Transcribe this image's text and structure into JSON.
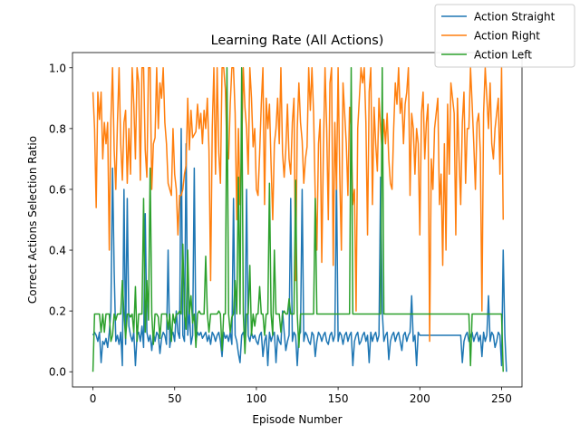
{
  "chart_data": {
    "type": "line",
    "title": "Learning Rate (All Actions)",
    "xlabel": "Episode Number",
    "ylabel": "Correct Actions Selection Ratio",
    "xlim": [
      -12.5,
      262.5
    ],
    "ylim": [
      -0.05,
      1.05
    ],
    "xticks": [
      0,
      50,
      100,
      150,
      200,
      250
    ],
    "yticks": [
      0.0,
      0.2,
      0.4,
      0.6,
      0.8,
      1.0
    ],
    "xtick_labels": [
      "0",
      "50",
      "100",
      "150",
      "200",
      "250"
    ],
    "ytick_labels": [
      "0.0",
      "0.2",
      "0.4",
      "0.6",
      "0.8",
      "1.0"
    ],
    "grid": false,
    "legend_position": "upper-right-outside",
    "series": [
      {
        "name": "Action Straight",
        "color": "#1f77b4",
        "values": [
          0.12,
          0.13,
          0.12,
          0.1,
          0.13,
          0.03,
          0.1,
          0.09,
          0.11,
          0.08,
          0.13,
          0.2,
          0.67,
          0.33,
          0.1,
          0.12,
          0.09,
          0.13,
          0.02,
          0.6,
          0.09,
          0.57,
          0.15,
          0.12,
          0.1,
          0.13,
          0.02,
          0.12,
          0.13,
          0.1,
          0.15,
          0.08,
          0.52,
          0.13,
          0.1,
          0.12,
          0.07,
          0.13,
          0.1,
          0.13,
          0.12,
          0.06,
          0.11,
          0.13,
          0.12,
          0.09,
          0.4,
          0.08,
          0.12,
          0.13,
          0.1,
          0.2,
          0.13,
          0.11,
          0.8,
          0.12,
          0.1,
          0.75,
          0.12,
          0.2,
          0.09,
          0.12,
          0.67,
          0.1,
          0.13,
          0.12,
          0.13,
          0.11,
          0.12,
          0.13,
          0.1,
          0.12,
          0.09,
          0.13,
          0.12,
          0.1,
          0.12,
          0.13,
          0.1,
          0.05,
          0.13,
          0.11,
          0.12,
          0.1,
          0.13,
          0.09,
          0.57,
          0.12,
          0.1,
          0.06,
          0.03,
          0.12,
          0.13,
          0.1,
          0.6,
          0.12,
          0.1,
          0.13,
          0.11,
          0.12,
          0.1,
          0.09,
          0.12,
          0.13,
          0.05,
          0.1,
          0.12,
          0.02,
          0.13,
          0.1,
          0.12,
          0.13,
          0.03,
          0.12,
          0.1,
          0.09,
          0.2,
          0.13,
          0.07,
          0.1,
          0.12,
          0.57,
          0.1,
          0.13,
          0.12,
          0.02,
          0.12,
          0.13,
          0.6,
          0.1,
          0.13,
          0.12,
          0.1,
          0.09,
          0.13,
          0.12,
          0.05,
          0.1,
          0.13,
          0.12,
          0.1,
          0.12,
          0.13,
          0.1,
          0.09,
          0.12,
          0.13,
          0.1,
          0.12,
          0.64,
          0.1,
          0.13,
          0.12,
          0.09,
          0.12,
          0.13,
          0.1,
          0.12,
          0.13,
          0.02,
          0.1,
          0.12,
          0.13,
          0.09,
          0.1,
          0.12,
          0.13,
          0.1,
          0.12,
          0.03,
          0.13,
          0.1,
          0.12,
          0.13,
          0.1,
          0.12,
          0.64,
          0.2,
          0.1,
          0.12,
          0.13,
          0.04,
          0.1,
          0.12,
          0.13,
          0.1,
          0.12,
          0.13,
          0.1,
          0.07,
          0.12,
          0.13,
          0.1,
          0.12,
          0.13,
          0.25,
          0.1,
          0.12,
          0.02,
          0.13,
          0.12,
          0.12,
          0.12,
          0.12,
          0.12,
          0.12,
          0.12,
          0.12,
          0.12,
          0.12,
          0.12,
          0.12,
          0.12,
          0.12,
          0.12,
          0.12,
          0.12,
          0.12,
          0.12,
          0.12,
          0.12,
          0.12,
          0.12,
          0.12,
          0.12,
          0.12,
          0.03,
          0.1,
          0.12,
          0.13,
          0.1,
          0.12,
          0.13,
          0.1,
          0.12,
          0.13,
          0.1,
          0.12,
          0.05,
          0.13,
          0.1,
          0.12,
          0.25,
          0.1,
          0.13,
          0.12,
          0.08,
          0.1,
          0.13,
          0.12,
          0.02,
          0.4,
          0.12,
          0.0
        ]
      },
      {
        "name": "Action Right",
        "color": "#ff7f0e",
        "values": [
          0.92,
          0.8,
          0.54,
          0.92,
          0.83,
          0.92,
          0.7,
          0.82,
          0.75,
          0.82,
          0.4,
          0.83,
          1.0,
          0.73,
          0.6,
          0.82,
          1.0,
          0.75,
          0.63,
          0.82,
          0.86,
          0.62,
          0.8,
          0.65,
          1.0,
          0.88,
          0.7,
          1.0,
          0.95,
          0.63,
          1.0,
          1.0,
          0.73,
          0.64,
          1.0,
          1.0,
          0.6,
          0.75,
          0.77,
          1.0,
          0.8,
          0.95,
          0.9,
          1.0,
          0.82,
          0.75,
          0.62,
          0.6,
          0.58,
          0.8,
          0.65,
          0.6,
          0.45,
          0.58,
          0.58,
          0.6,
          0.65,
          0.68,
          0.9,
          0.73,
          0.86,
          0.77,
          0.78,
          0.79,
          0.88,
          0.8,
          0.85,
          0.75,
          0.86,
          0.8,
          0.9,
          0.73,
          0.3,
          0.8,
          1.0,
          0.65,
          1.0,
          0.72,
          0.62,
          1.0,
          1.0,
          0.93,
          0.73,
          0.7,
          0.88,
          1.0,
          1.0,
          0.85,
          0.5,
          0.8,
          0.55,
          0.73,
          1.0,
          0.87,
          0.8,
          0.65,
          1.0,
          0.9,
          0.74,
          0.8,
          0.6,
          0.58,
          0.72,
          0.88,
          1.0,
          0.55,
          0.9,
          0.8,
          0.88,
          0.68,
          0.5,
          0.75,
          0.8,
          0.9,
          0.75,
          1.0,
          0.72,
          0.64,
          0.73,
          0.88,
          0.7,
          0.65,
          0.82,
          0.9,
          0.3,
          0.8,
          0.95,
          0.82,
          0.76,
          0.62,
          0.7,
          0.74,
          1.0,
          0.86,
          1.0,
          0.85,
          0.58,
          0.4,
          0.75,
          0.83,
          0.36,
          0.73,
          1.0,
          0.8,
          0.5,
          0.95,
          1.0,
          0.35,
          0.82,
          0.6,
          1.0,
          0.65,
          0.4,
          0.95,
          0.85,
          0.75,
          0.58,
          0.87,
          0.8,
          0.55,
          0.6,
          0.2,
          0.8,
          0.9,
          1.0,
          0.95,
          1.0,
          0.82,
          0.45,
          0.92,
          1.0,
          0.55,
          0.87,
          0.75,
          0.66,
          0.9,
          0.8,
          0.72,
          0.83,
          0.75,
          0.85,
          0.7,
          0.62,
          0.6,
          0.8,
          0.95,
          0.88,
          1.0,
          0.85,
          0.9,
          0.75,
          0.88,
          0.92,
          1.0,
          0.58,
          0.85,
          0.8,
          0.65,
          0.8,
          0.75,
          0.45,
          0.85,
          0.92,
          0.7,
          0.82,
          0.88,
          0.1,
          0.7,
          0.6,
          0.8,
          0.85,
          0.9,
          0.55,
          0.65,
          0.35,
          0.75,
          0.4,
          0.88,
          0.65,
          0.95,
          0.9,
          0.85,
          0.45,
          0.9,
          0.7,
          0.55,
          0.82,
          0.92,
          0.62,
          0.8,
          0.8,
          1.0,
          0.88,
          0.75,
          0.6,
          0.82,
          0.85,
          0.72,
          0.2,
          0.85,
          1.0,
          0.9,
          0.8,
          0.95,
          0.75,
          0.7,
          0.8,
          0.85,
          0.9,
          0.65,
          1.0,
          0.5
        ]
      },
      {
        "name": "Action Left",
        "color": "#2ca02c",
        "values": [
          0.0,
          0.19,
          0.19,
          0.19,
          0.19,
          0.13,
          0.19,
          0.13,
          0.19,
          0.19,
          0.19,
          0.1,
          0.12,
          0.19,
          0.17,
          0.19,
          0.19,
          0.19,
          0.3,
          0.19,
          0.11,
          0.19,
          0.19,
          0.18,
          0.19,
          0.13,
          0.28,
          0.1,
          0.19,
          0.19,
          0.19,
          0.57,
          0.13,
          0.3,
          0.17,
          0.67,
          0.19,
          0.09,
          0.19,
          0.19,
          0.18,
          0.11,
          0.19,
          0.19,
          0.19,
          0.19,
          0.14,
          0.19,
          0.1,
          0.19,
          0.16,
          0.19,
          0.19,
          0.2,
          0.19,
          0.42,
          0.19,
          0.14,
          0.4,
          0.19,
          0.25,
          0.16,
          0.19,
          0.08,
          0.19,
          0.2,
          0.19,
          0.19,
          0.19,
          0.38,
          0.19,
          0.13,
          0.19,
          0.19,
          0.19,
          0.19,
          0.19,
          0.2,
          0.19,
          0.07,
          0.19,
          0.19,
          1.0,
          0.19,
          0.13,
          0.18,
          0.19,
          0.3,
          0.19,
          0.64,
          0.19,
          1.0,
          0.19,
          0.06,
          0.19,
          0.19,
          0.35,
          0.12,
          0.19,
          0.15,
          0.19,
          0.19,
          0.28,
          0.19,
          0.19,
          0.12,
          0.19,
          0.19,
          0.62,
          0.19,
          0.12,
          0.4,
          0.19,
          0.19,
          0.19,
          0.13,
          0.19,
          0.2,
          0.19,
          0.19,
          0.24,
          0.19,
          0.19,
          0.19,
          0.63,
          0.19,
          0.08,
          0.19,
          0.19,
          0.19,
          0.19,
          0.19,
          0.19,
          0.19,
          0.19,
          0.19,
          0.57,
          0.19,
          0.19,
          0.19,
          0.19,
          0.19,
          0.19,
          0.19,
          0.19,
          0.19,
          0.19,
          0.19,
          0.19,
          0.19,
          0.19,
          0.19,
          0.19,
          0.19,
          0.19,
          0.19,
          0.19,
          0.19,
          1.0,
          0.19,
          0.19,
          0.19,
          0.19,
          0.19,
          0.19,
          0.19,
          0.19,
          0.19,
          0.19,
          0.19,
          0.19,
          0.19,
          0.19,
          0.19,
          0.19,
          0.19,
          0.19,
          1.0,
          0.19,
          0.19,
          0.19,
          0.19,
          0.19,
          0.19,
          0.19,
          0.19,
          0.19,
          0.19,
          0.19,
          0.19,
          0.19,
          0.19,
          0.19,
          0.19,
          0.19,
          0.19,
          0.19,
          0.19,
          0.19,
          0.19,
          0.19,
          0.19,
          0.19,
          0.19,
          0.19,
          0.19,
          0.19,
          0.19,
          0.19,
          0.19,
          0.19,
          0.19,
          0.19,
          0.19,
          0.19,
          0.19,
          0.19,
          0.19,
          0.19,
          0.19,
          0.19,
          0.19,
          0.19,
          0.19,
          0.19,
          0.19,
          0.19,
          0.19,
          0.19,
          0.19,
          0.19,
          0.02,
          0.19,
          0.19,
          0.19,
          0.19,
          0.19,
          0.19,
          0.19,
          0.19,
          0.19,
          0.19,
          0.19,
          0.19,
          0.19,
          0.19,
          0.19,
          0.19,
          0.19,
          0.19,
          0.19,
          0.0
        ]
      }
    ]
  }
}
